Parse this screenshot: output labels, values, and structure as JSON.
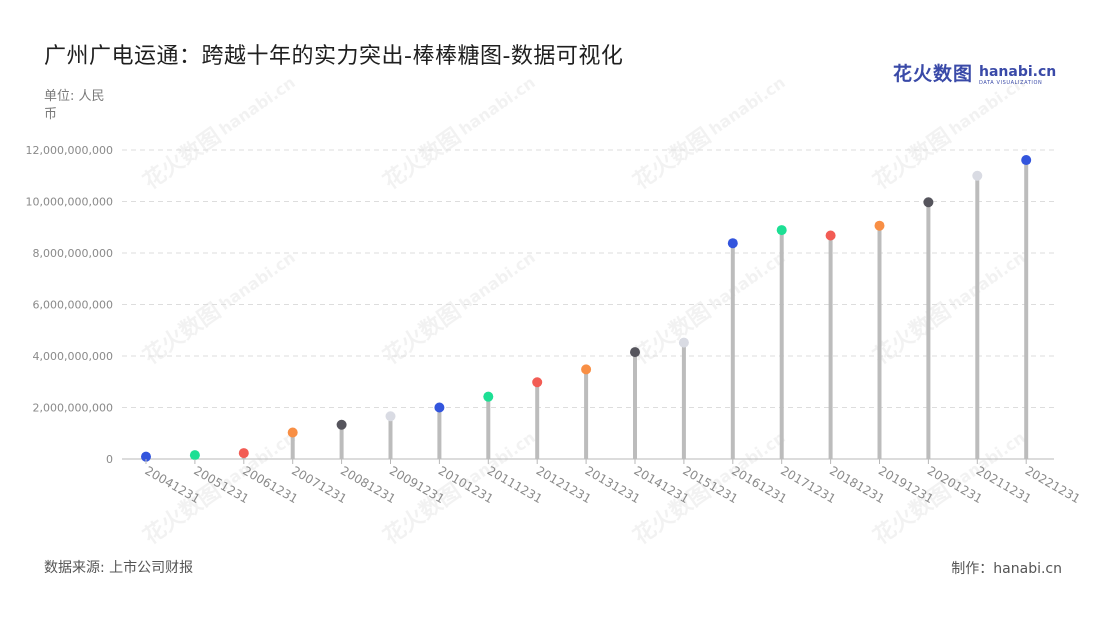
{
  "header": {
    "title": "广州广电运通：跨越十年的实力突出-棒棒糖图-数据可视化",
    "unit": "单位: 人民币"
  },
  "logo": {
    "cn": "花火数图",
    "en": "hanabi.cn",
    "sub": "DATA VISUALIZATION"
  },
  "footer": {
    "source": "数据来源: 上市公司财报",
    "maker": "制作：hanabi.cn"
  },
  "watermark": {
    "cn": "花火数图",
    "en": "hanabi.cn"
  },
  "colors": {
    "stem": "#bcbcbc",
    "grid": "#dddddd",
    "axis": "#b8b8b8",
    "tick_label": "#8a8a8a",
    "palette": [
      "#3355dd",
      "#1ddf94",
      "#f25c54",
      "#f88f45",
      "#55545c",
      "#d9dbe3"
    ]
  },
  "chart_data": {
    "type": "lollipop",
    "xlabel": "",
    "ylabel": "",
    "ylim": [
      0,
      12000000000
    ],
    "yticks": [
      0,
      2000000000,
      4000000000,
      6000000000,
      8000000000,
      10000000000,
      12000000000
    ],
    "ytick_labels": [
      "0",
      "2,000,000,000",
      "4,000,000,000",
      "6,000,000,000",
      "8,000,000,000",
      "10,000,000,000",
      "12,000,000,000"
    ],
    "grid": true,
    "categories": [
      "20041231",
      "20051231",
      "20061231",
      "20071231",
      "20081231",
      "20091231",
      "20101231",
      "20111231",
      "20121231",
      "20131231",
      "20141231",
      "20151231",
      "20161231",
      "20171231",
      "20181231",
      "20191231",
      "20201231",
      "20211231",
      "20221231"
    ],
    "values": [
      90000000,
      150000000,
      230000000,
      1030000000,
      1330000000,
      1660000000,
      2000000000,
      2420000000,
      2980000000,
      3480000000,
      4150000000,
      4520000000,
      8380000000,
      8890000000,
      8680000000,
      9060000000,
      9970000000,
      11000000000,
      11610000000
    ]
  }
}
